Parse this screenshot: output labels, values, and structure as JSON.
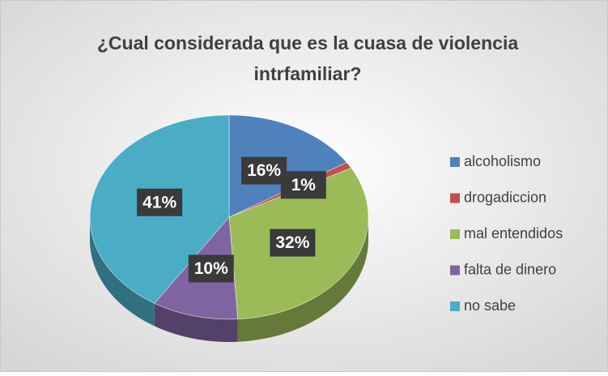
{
  "chart_data": {
    "type": "pie3d",
    "title": "¿Cual considerada que es la cuasa de violencia intrfamiliar?",
    "categories": [
      "alcoholismo",
      "drogadiccion",
      "mal entendidos",
      "falta de dinero",
      "no sabe"
    ],
    "values": [
      16,
      1,
      32,
      10,
      41
    ],
    "value_labels": [
      "16%",
      "1%",
      "32%",
      "10%",
      "41%"
    ],
    "colors": [
      "#4f81bd",
      "#c0504d",
      "#9bbb59",
      "#8064a2",
      "#4bacc6"
    ],
    "legend": "right"
  }
}
